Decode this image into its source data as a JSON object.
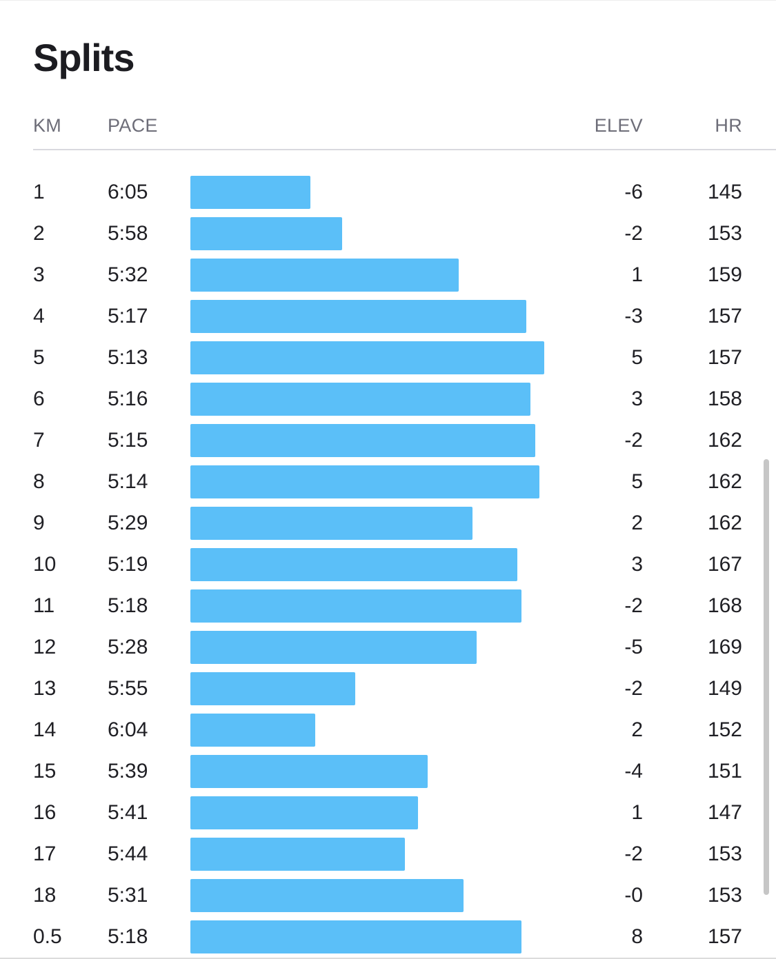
{
  "title": "Splits",
  "columns": {
    "km": "KM",
    "pace": "PACE",
    "elev": "ELEV",
    "hr": "HR"
  },
  "accent_color": "#5bbff8",
  "chart_data": {
    "type": "bar",
    "orientation": "horizontal",
    "xlabel": "PACE",
    "categories": [
      "1",
      "2",
      "3",
      "4",
      "5",
      "6",
      "7",
      "8",
      "9",
      "10",
      "11",
      "12",
      "13",
      "14",
      "15",
      "16",
      "17",
      "18",
      "0.5"
    ],
    "series": [
      {
        "values": [
          "6:05",
          "5:58",
          "5:32",
          "5:17",
          "5:13",
          "5:16",
          "5:15",
          "5:14",
          "5:29",
          "5:19",
          "5:18",
          "5:28",
          "5:55",
          "6:04",
          "5:39",
          "5:41",
          "5:44",
          "5:31",
          "5:18"
        ]
      }
    ]
  },
  "splits": [
    {
      "km": "1",
      "pace": "6:05",
      "pace_sec": 365,
      "elev": "-6",
      "hr": "145"
    },
    {
      "km": "2",
      "pace": "5:58",
      "pace_sec": 358,
      "elev": "-2",
      "hr": "153"
    },
    {
      "km": "3",
      "pace": "5:32",
      "pace_sec": 332,
      "elev": "1",
      "hr": "159"
    },
    {
      "km": "4",
      "pace": "5:17",
      "pace_sec": 317,
      "elev": "-3",
      "hr": "157"
    },
    {
      "km": "5",
      "pace": "5:13",
      "pace_sec": 313,
      "elev": "5",
      "hr": "157"
    },
    {
      "km": "6",
      "pace": "5:16",
      "pace_sec": 316,
      "elev": "3",
      "hr": "158"
    },
    {
      "km": "7",
      "pace": "5:15",
      "pace_sec": 315,
      "elev": "-2",
      "hr": "162"
    },
    {
      "km": "8",
      "pace": "5:14",
      "pace_sec": 314,
      "elev": "5",
      "hr": "162"
    },
    {
      "km": "9",
      "pace": "5:29",
      "pace_sec": 329,
      "elev": "2",
      "hr": "162"
    },
    {
      "km": "10",
      "pace": "5:19",
      "pace_sec": 319,
      "elev": "3",
      "hr": "167"
    },
    {
      "km": "11",
      "pace": "5:18",
      "pace_sec": 318,
      "elev": "-2",
      "hr": "168"
    },
    {
      "km": "12",
      "pace": "5:28",
      "pace_sec": 328,
      "elev": "-5",
      "hr": "169"
    },
    {
      "km": "13",
      "pace": "5:55",
      "pace_sec": 355,
      "elev": "-2",
      "hr": "149"
    },
    {
      "km": "14",
      "pace": "6:04",
      "pace_sec": 364,
      "elev": "2",
      "hr": "152"
    },
    {
      "km": "15",
      "pace": "5:39",
      "pace_sec": 339,
      "elev": "-4",
      "hr": "151"
    },
    {
      "km": "16",
      "pace": "5:41",
      "pace_sec": 341,
      "elev": "1",
      "hr": "147"
    },
    {
      "km": "17",
      "pace": "5:44",
      "pace_sec": 344,
      "elev": "-2",
      "hr": "153"
    },
    {
      "km": "18",
      "pace": "5:31",
      "pace_sec": 331,
      "elev": "-0",
      "hr": "153"
    },
    {
      "km": "0.5",
      "pace": "5:18",
      "pace_sec": 318,
      "elev": "8",
      "hr": "157"
    }
  ]
}
